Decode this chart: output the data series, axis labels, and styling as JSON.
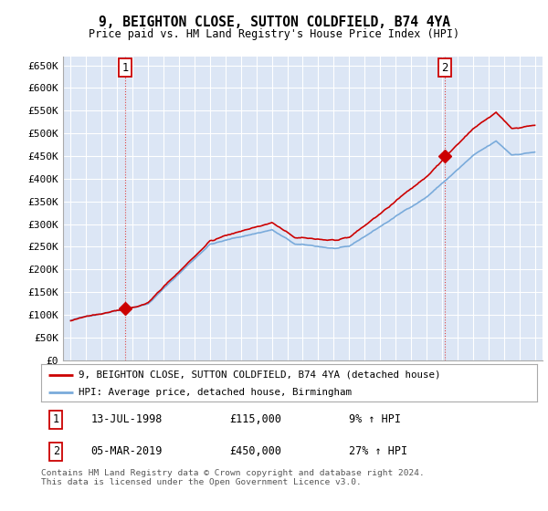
{
  "title": "9, BEIGHTON CLOSE, SUTTON COLDFIELD, B74 4YA",
  "subtitle": "Price paid vs. HM Land Registry's House Price Index (HPI)",
  "bg_color": "#dce6f5",
  "grid_color": "#ffffff",
  "sale1_date": 1998.54,
  "sale1_price": 115000,
  "sale2_date": 2019.17,
  "sale2_price": 450000,
  "legend_line1": "9, BEIGHTON CLOSE, SUTTON COLDFIELD, B74 4YA (detached house)",
  "legend_line2": "HPI: Average price, detached house, Birmingham",
  "table_row1": [
    "1",
    "13-JUL-1998",
    "£115,000",
    "9% ↑ HPI"
  ],
  "table_row2": [
    "2",
    "05-MAR-2019",
    "£450,000",
    "27% ↑ HPI"
  ],
  "footer": "Contains HM Land Registry data © Crown copyright and database right 2024.\nThis data is licensed under the Open Government Licence v3.0.",
  "ylim_min": 0,
  "ylim_max": 670000,
  "xlim_min": 1994.5,
  "xlim_max": 2025.5,
  "red_color": "#cc0000",
  "blue_color": "#7aabdb",
  "dashed_color": "#cc4444"
}
